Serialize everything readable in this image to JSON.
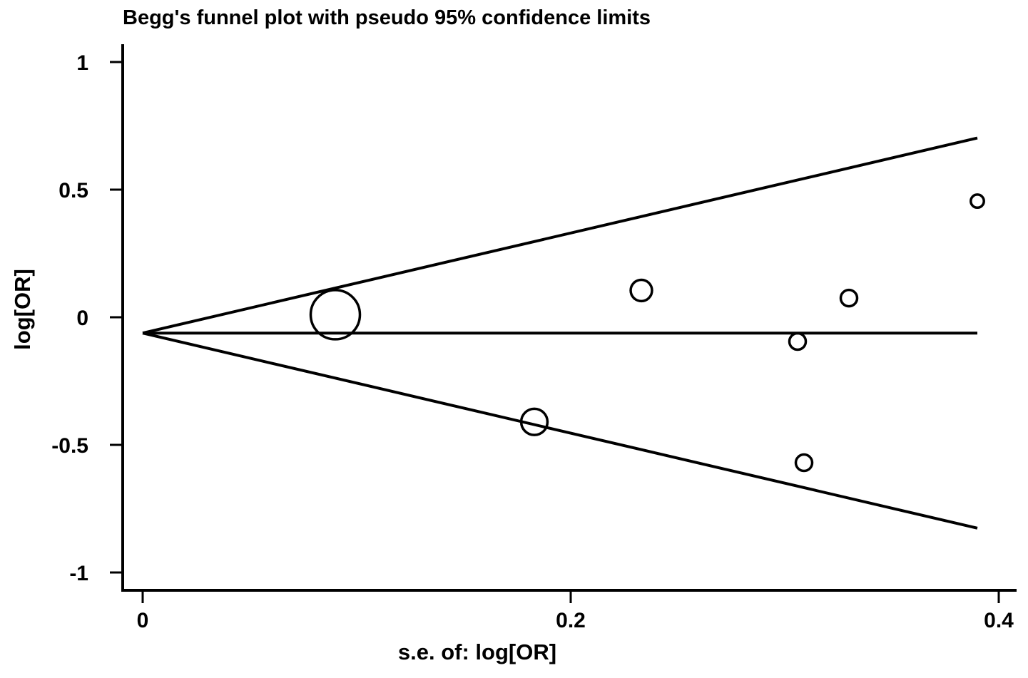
{
  "chart_data": {
    "type": "scatter",
    "title": "Begg's funnel plot with pseudo 95% confidence limits",
    "xlabel": "s.e. of: log[OR]",
    "ylabel": "log[OR]",
    "xlim": [
      0,
      0.4
    ],
    "ylim": [
      -1,
      1
    ],
    "x_ticks": [
      0,
      0.2,
      0.4
    ],
    "x_tick_labels": [
      "0",
      "0.2",
      "0.4"
    ],
    "y_ticks": [
      1,
      0.5,
      0,
      -0.5,
      -1
    ],
    "y_tick_labels": [
      "1",
      "0.5",
      "0",
      "-0.5",
      "-1"
    ],
    "grid": false,
    "legend": "none",
    "pooled_estimate": -0.062,
    "ci_multiplier": 1.96,
    "funnel_x_max": 0.39,
    "points": [
      {
        "x": 0.09,
        "y": 0.01,
        "size": 3.0
      },
      {
        "x": 0.183,
        "y": -0.41,
        "size": 1.6
      },
      {
        "x": 0.233,
        "y": 0.105,
        "size": 1.3
      },
      {
        "x": 0.306,
        "y": -0.095,
        "size": 1.0
      },
      {
        "x": 0.309,
        "y": -0.57,
        "size": 1.0
      },
      {
        "x": 0.33,
        "y": 0.075,
        "size": 1.0
      },
      {
        "x": 0.39,
        "y": 0.455,
        "size": 0.8
      }
    ]
  }
}
